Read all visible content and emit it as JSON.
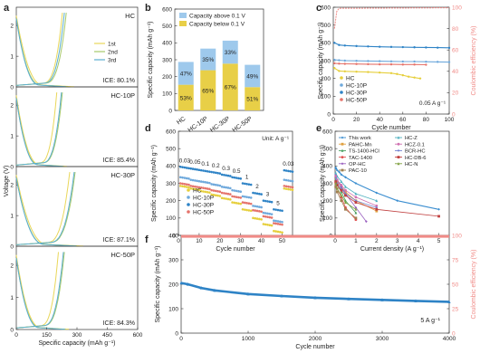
{
  "panels": {
    "a": {
      "letter": "a",
      "ylabel": "Voltage (V)",
      "xlabel": "Specific capacity (mAh g⁻¹)",
      "xticks": [
        "0",
        "150",
        "300",
        "450",
        "600"
      ],
      "yticks": [
        "0",
        "1",
        "2"
      ],
      "legend": [
        "1st",
        "2nd",
        "3rd"
      ],
      "rows": [
        {
          "name": "HC",
          "ice": "ICE: 80.1%"
        },
        {
          "name": "HC-10P",
          "ice": "ICE: 85.4%"
        },
        {
          "name": "HC-30P",
          "ice": "ICE: 87.1%"
        },
        {
          "name": "HC-50P",
          "ice": "ICE: 84.3%"
        }
      ]
    },
    "b": {
      "letter": "b",
      "ylabel": "Specific capacity (mAh g⁻¹)",
      "yticks": [
        "0",
        "100",
        "200",
        "300",
        "400",
        "500",
        "600"
      ],
      "legend": [
        "Capacity above 0.1 V",
        "Capacity below 0.1 V"
      ]
    },
    "c": {
      "letter": "c",
      "ylabel": "Specific capacity (mAh g⁻¹)",
      "y2label": "Coulombic efficiency (%)",
      "xlabel": "Cycle number",
      "xticks": [
        "0",
        "20",
        "40",
        "60",
        "80",
        "100"
      ],
      "yticks": [
        "0",
        "100",
        "200",
        "300",
        "400",
        "500",
        "600"
      ],
      "y2ticks": [
        "0",
        "20",
        "40",
        "60",
        "80",
        "100"
      ],
      "legend": [
        "HC",
        "HC-10P",
        "HC-30P",
        "HC-50P"
      ],
      "rate": "0.05 A g⁻¹"
    },
    "d": {
      "letter": "d",
      "ylabel": "Specific capacity (mAh g⁻¹)",
      "xlabel": "Cycle number",
      "unit": "Unit: A g⁻¹",
      "xticks": [
        "0",
        "10",
        "20",
        "30",
        "40",
        "50"
      ],
      "yticks": [
        "0",
        "100",
        "200",
        "300",
        "400",
        "500",
        "600"
      ],
      "legend": [
        "HC",
        "HC-10P",
        "HC-30P",
        "HC-50P"
      ],
      "rate_labels": [
        "0.03",
        "0.05",
        "0.1",
        "0.2",
        "0.3",
        "0.5",
        "1",
        "2",
        "3",
        "5",
        "0.03"
      ]
    },
    "e": {
      "letter": "e",
      "ylabel": "Specific capacity (mAh g⁻¹)",
      "xlabel": "Current density (A g⁻¹)",
      "xticks": [
        "0",
        "1",
        "2",
        "3",
        "4",
        "5"
      ],
      "yticks": [
        "0",
        "100",
        "200",
        "300",
        "400",
        "500",
        "600"
      ],
      "legend": [
        "This work",
        "PAHC-Mn",
        "TS-1400-HCl",
        "TAC-1400",
        "OP-HC",
        "PAC-10",
        "HC-Z",
        "HCZ-0.1",
        "BCR-HC",
        "HC-DB-6",
        "HC-N"
      ]
    },
    "f": {
      "letter": "f",
      "ylabel": "Specific capacity (mAh g⁻¹)",
      "y2label": "Coulombic efficiency (%)",
      "xlabel": "Cycle number",
      "xticks": [
        "0",
        "1000",
        "2000",
        "3000",
        "4000"
      ],
      "yticks": [
        "0",
        "100",
        "200",
        "300",
        "400"
      ],
      "y2ticks": [
        "0",
        "25",
        "50",
        "75",
        "100"
      ],
      "rate": "5 A g⁻¹"
    }
  },
  "colors": {
    "first": "#e9d75a",
    "second": "#a7c96a",
    "third": "#5aaed0",
    "hc": "#e6cf3c",
    "hc10p": "#6fa9dc",
    "hc30p": "#2e83c6",
    "hc50p": "#e5736b",
    "ce": "#f08a86",
    "above": "#9ec9ec",
    "below": "#e8cf47"
  },
  "chart_data": [
    {
      "panel": "b",
      "type": "bar",
      "categories": [
        "HC",
        "HC-10P",
        "HC-30P",
        "HC-50P"
      ],
      "ylabel": "Specific capacity (mAh g⁻¹)",
      "ylim": [
        0,
        600
      ],
      "series": [
        {
          "name": "Capacity below 0.1 V",
          "values": [
            152,
            238,
            277,
            138
          ],
          "labels": [
            "53%",
            "65%",
            "67%",
            "51%"
          ]
        },
        {
          "name": "Capacity above 0.1 V",
          "values": [
            135,
            128,
            136,
            132
          ],
          "labels": [
            "47%",
            "35%",
            "33%",
            "49%"
          ]
        }
      ]
    },
    {
      "panel": "c",
      "type": "line",
      "xlabel": "Cycle number",
      "ylabel": "Specific capacity (mAh g⁻¹)",
      "xlim": [
        0,
        100
      ],
      "ylim": [
        0,
        600
      ],
      "series": [
        {
          "name": "HC",
          "x": [
            1,
            5,
            10,
            20,
            30,
            40,
            50,
            55,
            60,
            65,
            70,
            75
          ],
          "values": [
            258,
            242,
            240,
            238,
            236,
            233,
            230,
            225,
            218,
            210,
            205,
            200
          ]
        },
        {
          "name": "HC-10P",
          "x": [
            1,
            5,
            10,
            20,
            30,
            40,
            50,
            60,
            70,
            80,
            90,
            100
          ],
          "values": [
            305,
            302,
            300,
            299,
            298,
            297,
            296,
            295,
            295,
            294,
            293,
            292
          ]
        },
        {
          "name": "HC-30P",
          "x": [
            1,
            5,
            10,
            20,
            30,
            40,
            50,
            60,
            70,
            80,
            90,
            100
          ],
          "values": [
            400,
            388,
            385,
            382,
            380,
            378,
            377,
            376,
            375,
            374,
            373,
            372
          ]
        },
        {
          "name": "HC-50P",
          "x": [
            1,
            5,
            10,
            20,
            30,
            40,
            50,
            60,
            70,
            80
          ],
          "values": [
            285,
            283,
            282,
            281,
            280,
            279,
            279,
            278,
            278,
            277
          ]
        }
      ],
      "ce_percent": {
        "x": [
          1,
          3,
          5,
          100
        ],
        "values": [
          80,
          96,
          99,
          99.5
        ]
      }
    },
    {
      "panel": "d",
      "type": "scatter",
      "xlabel": "Cycle number",
      "ylabel": "Specific capacity (mAh g⁻¹)",
      "xlim": [
        0,
        55
      ],
      "ylim": [
        0,
        600
      ],
      "categories": [
        "0.03",
        "0.05",
        "0.1",
        "0.2",
        "0.3",
        "0.5",
        "1",
        "2",
        "3",
        "5",
        "0.03"
      ],
      "series": [
        {
          "name": "HC",
          "values": [
            285,
            270,
            255,
            235,
            215,
            190,
            150,
            100,
            65,
            25,
            270
          ]
        },
        {
          "name": "HC-10P",
          "values": [
            335,
            320,
            310,
            295,
            280,
            260,
            225,
            170,
            130,
            85,
            320
          ]
        },
        {
          "name": "HC-30P",
          "values": [
            395,
            385,
            375,
            365,
            350,
            335,
            300,
            245,
            200,
            150,
            375
          ]
        },
        {
          "name": "HC-50P",
          "values": [
            300,
            285,
            275,
            260,
            245,
            225,
            190,
            145,
            110,
            70,
            285
          ]
        }
      ]
    },
    {
      "panel": "e",
      "type": "line",
      "xlabel": "Current density (A g⁻¹)",
      "ylabel": "Specific capacity (mAh g⁻¹)",
      "xlim": [
        0,
        5.5
      ],
      "ylim": [
        0,
        600
      ],
      "series": [
        {
          "name": "This work",
          "x": [
            0.03,
            0.05,
            0.1,
            0.2,
            0.3,
            0.5,
            1,
            2,
            3,
            5
          ],
          "values": [
            390,
            385,
            375,
            365,
            350,
            335,
            300,
            245,
            200,
            150
          ]
        },
        {
          "name": "PAHC-Mn",
          "x": [
            0.03,
            0.1,
            0.3,
            0.5,
            1,
            2
          ],
          "values": [
            330,
            310,
            280,
            250,
            200,
            140
          ]
        },
        {
          "name": "TS-1400-HCl",
          "x": [
            0.03,
            0.1,
            0.3,
            0.5,
            1
          ],
          "values": [
            320,
            290,
            250,
            200,
            130
          ]
        },
        {
          "name": "TAC-1400",
          "x": [
            0.03,
            0.1,
            0.3,
            0.5,
            1
          ],
          "values": [
            300,
            270,
            220,
            160,
            90
          ]
        },
        {
          "name": "OP-HC",
          "x": [
            0.03,
            0.1,
            0.3,
            0.5,
            1,
            1.5
          ],
          "values": [
            350,
            320,
            280,
            240,
            160,
            80
          ]
        },
        {
          "name": "PAC-10",
          "x": [
            0.03,
            0.1,
            0.3,
            0.5,
            1
          ],
          "values": [
            280,
            250,
            200,
            150,
            100
          ]
        },
        {
          "name": "HC-Z",
          "x": [
            0.03,
            0.1,
            0.3,
            0.5,
            1,
            2
          ],
          "values": [
            360,
            340,
            310,
            280,
            240,
            200
          ]
        },
        {
          "name": "HCZ-0.1",
          "x": [
            0.03,
            0.1,
            0.3,
            0.5,
            1,
            2
          ],
          "values": [
            340,
            320,
            290,
            260,
            220,
            170
          ]
        },
        {
          "name": "BCR-HC",
          "x": [
            0.03,
            0.1,
            0.3,
            0.5,
            1,
            2
          ],
          "values": [
            330,
            300,
            270,
            240,
            200,
            160
          ]
        },
        {
          "name": "HC-DB-6",
          "x": [
            0.03,
            0.1,
            0.3,
            0.5,
            1,
            2,
            5
          ],
          "values": [
            310,
            290,
            260,
            230,
            190,
            150,
            110
          ]
        },
        {
          "name": "HC-N",
          "x": [
            0.03,
            0.1,
            0.3,
            0.5,
            1
          ],
          "values": [
            300,
            270,
            230,
            190,
            150
          ]
        }
      ]
    },
    {
      "panel": "f",
      "type": "line",
      "xlabel": "Cycle number",
      "ylabel": "Specific capacity (mAh g⁻¹)",
      "xlim": [
        0,
        4000
      ],
      "ylim": [
        0,
        400
      ],
      "series": [
        {
          "name": "Specific capacity",
          "x": [
            0,
            100,
            300,
            500,
            1000,
            1500,
            2000,
            2500,
            3000,
            3500,
            4000
          ],
          "values": [
            205,
            200,
            185,
            175,
            160,
            152,
            145,
            140,
            136,
            132,
            128
          ]
        }
      ],
      "ce_percent": {
        "x": [
          0,
          4000
        ],
        "values": [
          99,
          99
        ]
      },
      "rate": "5 A g⁻¹"
    }
  ]
}
